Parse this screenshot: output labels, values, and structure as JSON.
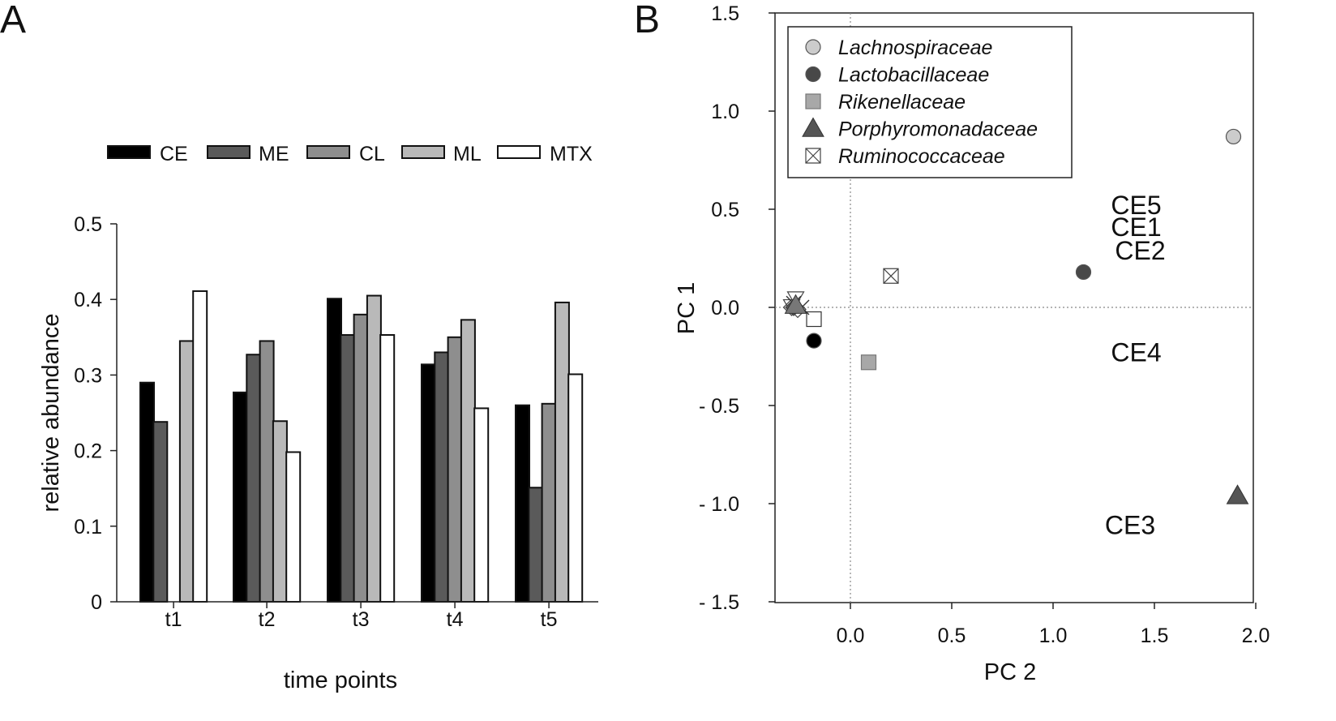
{
  "panel_labels": {
    "a": "A",
    "b": "B"
  },
  "colors": {
    "CE": "#000000",
    "ME": "#5a5a5a",
    "CL": "#8e8e8e",
    "ML": "#b9b9b9",
    "MTX": "#ffffff",
    "lachno": "#cccccc",
    "lacto": "#484848",
    "riken": "#a8a8a8",
    "porphy": "#555555",
    "rumino": "#ffffff"
  },
  "chart_data": [
    {
      "type": "bar",
      "panel": "A",
      "categories": [
        "t1",
        "t2",
        "t3",
        "t4",
        "t5"
      ],
      "series": [
        {
          "key": "CE",
          "name": "CE",
          "values": [
            0.29,
            0.277,
            0.401,
            0.314,
            0.26
          ]
        },
        {
          "key": "ME",
          "name": "ME",
          "values": [
            0.238,
            0.327,
            0.353,
            0.33,
            0.151
          ]
        },
        {
          "key": "CL",
          "name": "CL",
          "values": [
            0,
            0.345,
            0.38,
            0.35,
            0.262
          ]
        },
        {
          "key": "ML",
          "name": "ML",
          "values": [
            0.345,
            0.239,
            0.405,
            0.373,
            0.396
          ]
        },
        {
          "key": "MTX",
          "name": "MTX",
          "values": [
            0.411,
            0.198,
            0.353,
            0.256,
            0.301
          ]
        }
      ],
      "xlabel": "time points",
      "ylabel": "relative abundance",
      "ylim": [
        0,
        0.5
      ],
      "yticks": [
        "0",
        "0.1",
        "0.2",
        "0.3",
        "0.4",
        "0.5"
      ],
      "legend_position": "top"
    },
    {
      "type": "scatter",
      "panel": "B",
      "xlabel": "PC 2",
      "ylabel": "PC 1",
      "xlim": [
        -0.38,
        2.0
      ],
      "ylim": [
        -1.5,
        1.5
      ],
      "xticks": [
        "0.0",
        "0.5",
        "1.0",
        "1.5",
        "2.0"
      ],
      "yticks": [
        "1.5",
        "1.0",
        "0.5",
        "0.0",
        "- 0.5",
        "- 1.0",
        "- 1.5"
      ],
      "reference_lines": {
        "x": 0,
        "y": 0
      },
      "legend": [
        {
          "key": "lachno",
          "label": "Lachnospiraceae",
          "marker": "circle"
        },
        {
          "key": "lacto",
          "label": "Lactobacillaceae",
          "marker": "circle"
        },
        {
          "key": "riken",
          "label": "Rikenellaceae",
          "marker": "square"
        },
        {
          "key": "porphy",
          "label": "Porphyromonadaceae",
          "marker": "triangle"
        },
        {
          "key": "rumino",
          "label": "Ruminococcaceae",
          "marker": "boxx"
        }
      ],
      "points": [
        {
          "group": "lachno",
          "marker": "circle",
          "x": 1.89,
          "y": 0.87
        },
        {
          "group": "lacto",
          "marker": "circle",
          "x": 1.15,
          "y": 0.18
        },
        {
          "group": "riken",
          "marker": "square",
          "x": 0.09,
          "y": -0.28
        },
        {
          "group": "porphy",
          "marker": "triangle",
          "x": 1.91,
          "y": -0.96
        },
        {
          "group": "rumino",
          "marker": "boxx",
          "x": 0.2,
          "y": 0.16
        },
        {
          "group": "riken",
          "marker": "boxsq",
          "x": -0.18,
          "y": -0.06
        },
        {
          "group": "lacto",
          "marker": "dot",
          "x": -0.18,
          "y": -0.17
        },
        {
          "group": "cluster",
          "marker": "tri-down",
          "x": -0.27,
          "y": 0.05
        },
        {
          "group": "cluster",
          "marker": "tri-down",
          "x": -0.29,
          "y": 0.01
        },
        {
          "group": "cluster",
          "marker": "diamond",
          "x": -0.26,
          "y": -0.01
        },
        {
          "group": "cluster",
          "marker": "diamond",
          "x": -0.29,
          "y": 0.0
        },
        {
          "group": "cluster",
          "marker": "cross",
          "x": -0.24,
          "y": 0.0
        },
        {
          "group": "cluster",
          "marker": "cross",
          "x": -0.28,
          "y": 0.02
        },
        {
          "group": "cluster",
          "marker": "diamond-fill",
          "x": -0.28,
          "y": 0.0
        },
        {
          "group": "cluster",
          "marker": "tri-fill",
          "x": -0.27,
          "y": 0.01
        }
      ],
      "labels": [
        {
          "text": "CE5",
          "x": 1.41,
          "y": 0.52
        },
        {
          "text": "CE1",
          "x": 1.41,
          "y": 0.41
        },
        {
          "text": "CE2",
          "x": 1.43,
          "y": 0.29
        },
        {
          "text": "CE4",
          "x": 1.41,
          "y": -0.23
        },
        {
          "text": "CE3",
          "x": 1.38,
          "y": -1.11
        }
      ]
    }
  ]
}
